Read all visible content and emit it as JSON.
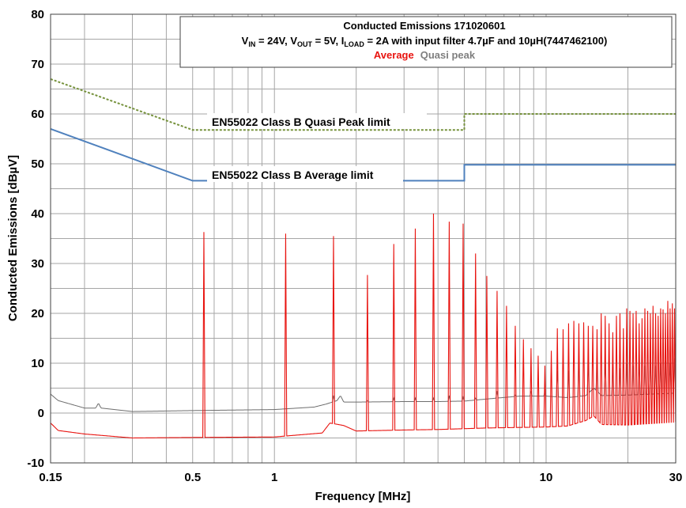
{
  "chart_data": {
    "type": "line",
    "title": "Conducted Emissions 171020601",
    "subtitle": {
      "v_in": "V",
      "v_in_sub": "IN",
      "part1": " = 24V, V",
      "v_out_sub": "OUT",
      "part2": " = 5V, I",
      "i_load_sub": "LOAD",
      "part3": " = 2A with input filter 4.7µF and 10µH(7447462100)"
    },
    "legend": {
      "position": "top",
      "average_label": "Average",
      "quasi_peak_label": "Quasi peak"
    },
    "xlabel": "Frequency [MHz]",
    "ylabel": "Conducted Emissions [dBµV]",
    "xscale": "log",
    "xlim": [
      0.15,
      30
    ],
    "ylim": [
      -10,
      80
    ],
    "grid": true,
    "x_tick_labels": [
      {
        "value": 0.15,
        "label": "0.15"
      },
      {
        "value": 0.5,
        "label": "0.5"
      },
      {
        "value": 1,
        "label": "1"
      },
      {
        "value": 10,
        "label": "10"
      },
      {
        "value": 30,
        "label": "30"
      }
    ],
    "y_ticks": [
      -10,
      0,
      10,
      20,
      30,
      40,
      50,
      60,
      70,
      80
    ],
    "colors": {
      "average": "#e8130f",
      "quasi_peak": "#6e6e6e",
      "qp_limit": "#76923c",
      "avg_limit": "#4f81bd",
      "grid": "#a6a6a6"
    },
    "limits": [
      {
        "name": "EN55022 Class B Quasi Peak limit",
        "points": [
          [
            0.15,
            67
          ],
          [
            0.5,
            56.8
          ],
          [
            5,
            56.8
          ],
          [
            5,
            60
          ],
          [
            30,
            60
          ]
        ]
      },
      {
        "name": "EN55022 Class B Average limit",
        "points": [
          [
            0.15,
            57
          ],
          [
            0.5,
            46.6
          ],
          [
            5,
            46.6
          ],
          [
            5,
            49.8
          ],
          [
            30,
            49.8
          ]
        ]
      }
    ],
    "series": [
      {
        "name": "Average",
        "baseline": [
          [
            0.15,
            -2
          ],
          [
            0.16,
            -3.5
          ],
          [
            0.2,
            -4.2
          ],
          [
            0.3,
            -5
          ],
          [
            0.5,
            -4.9
          ],
          [
            1,
            -4.8
          ],
          [
            1.5,
            -4
          ],
          [
            1.6,
            -2
          ],
          [
            1.8,
            -2.5
          ],
          [
            2,
            -3.6
          ],
          [
            3,
            -3.4
          ],
          [
            4,
            -3.3
          ],
          [
            6,
            -3
          ],
          [
            10,
            -2.8
          ],
          [
            12,
            -2.6
          ],
          [
            14,
            -1.5
          ],
          [
            15,
            -0.6
          ],
          [
            16,
            -2.3
          ],
          [
            20,
            -2.4
          ],
          [
            30,
            -1.8
          ]
        ],
        "peaks": [
          [
            0.55,
            36.3
          ],
          [
            1.1,
            36
          ],
          [
            1.65,
            35.5
          ],
          [
            2.2,
            27.7
          ],
          [
            2.75,
            33.9
          ],
          [
            3.3,
            37
          ],
          [
            3.85,
            40
          ],
          [
            4.4,
            38.4
          ],
          [
            4.95,
            38
          ],
          [
            5.5,
            32
          ],
          [
            6.05,
            27.5
          ],
          [
            6.6,
            24.5
          ],
          [
            7.15,
            21.5
          ],
          [
            7.7,
            17.5
          ],
          [
            8.25,
            14.8
          ],
          [
            8.8,
            13
          ],
          [
            9.35,
            11.5
          ],
          [
            9.9,
            9.5
          ],
          [
            10.45,
            12.5
          ],
          [
            11,
            17
          ],
          [
            11.55,
            16.8
          ],
          [
            12.1,
            18
          ],
          [
            12.65,
            18.5
          ],
          [
            13.2,
            18
          ],
          [
            13.75,
            18.2
          ],
          [
            14.3,
            17.5
          ],
          [
            14.85,
            17.5
          ],
          [
            15.4,
            16.8
          ],
          [
            15.95,
            20
          ],
          [
            16.5,
            19.5
          ],
          [
            17.05,
            18
          ],
          [
            17.6,
            16.2
          ],
          [
            18.15,
            19.5
          ],
          [
            18.7,
            20
          ],
          [
            19.25,
            17
          ],
          [
            19.8,
            21
          ],
          [
            20.35,
            20.5
          ],
          [
            20.9,
            20
          ],
          [
            21.45,
            20.5
          ],
          [
            22,
            18
          ],
          [
            22.55,
            19
          ],
          [
            23.1,
            21
          ],
          [
            23.65,
            20.5
          ],
          [
            24.2,
            20
          ],
          [
            24.75,
            21.5
          ],
          [
            25.3,
            20
          ],
          [
            25.85,
            19.5
          ],
          [
            26.4,
            21
          ],
          [
            26.95,
            20.8
          ],
          [
            27.5,
            20
          ],
          [
            28.05,
            22.5
          ],
          [
            28.6,
            21
          ],
          [
            29.15,
            22
          ],
          [
            29.7,
            21
          ]
        ]
      },
      {
        "name": "Quasi peak",
        "points": [
          [
            0.15,
            3.8
          ],
          [
            0.16,
            2.5
          ],
          [
            0.2,
            1
          ],
          [
            0.22,
            1
          ],
          [
            0.225,
            2
          ],
          [
            0.23,
            1
          ],
          [
            0.3,
            0.3
          ],
          [
            0.5,
            0.5
          ],
          [
            1,
            0.7
          ],
          [
            1.4,
            1.2
          ],
          [
            1.55,
            1.8
          ],
          [
            1.7,
            2.5
          ],
          [
            1.75,
            3.5
          ],
          [
            1.8,
            2.2
          ],
          [
            2,
            2.2
          ],
          [
            3,
            2.3
          ],
          [
            4,
            2.3
          ],
          [
            5,
            2.4
          ],
          [
            6,
            2.8
          ],
          [
            8,
            3.4
          ],
          [
            10,
            3.4
          ],
          [
            12,
            3.1
          ],
          [
            14,
            3.5
          ],
          [
            15,
            5
          ],
          [
            16,
            3.5
          ],
          [
            20,
            3.6
          ],
          [
            30,
            4
          ]
        ],
        "peaks": [
          [
            1.65,
            3.5
          ],
          [
            2.2,
            2.5
          ],
          [
            2.75,
            3
          ],
          [
            3.3,
            3
          ],
          [
            3.85,
            3
          ],
          [
            4.4,
            3.5
          ],
          [
            4.95,
            3.2
          ],
          [
            5.5,
            3
          ],
          [
            6.6,
            4.4
          ],
          [
            7.7,
            3.6
          ],
          [
            8.8,
            4.4
          ],
          [
            9.9,
            4.4
          ],
          [
            11,
            8.5
          ],
          [
            12.1,
            8.5
          ],
          [
            13.2,
            11
          ],
          [
            14.3,
            9.8
          ],
          [
            15.4,
            10
          ],
          [
            16.5,
            10.5
          ],
          [
            17.6,
            9.5
          ],
          [
            18.7,
            9
          ],
          [
            19.8,
            10
          ],
          [
            20.9,
            9.5
          ],
          [
            22,
            10.5
          ],
          [
            23.1,
            9.5
          ],
          [
            24.2,
            10.8
          ],
          [
            25.3,
            9.5
          ],
          [
            26.4,
            10
          ],
          [
            27.5,
            10.5
          ],
          [
            28.6,
            10
          ],
          [
            29.7,
            11
          ]
        ]
      }
    ]
  }
}
